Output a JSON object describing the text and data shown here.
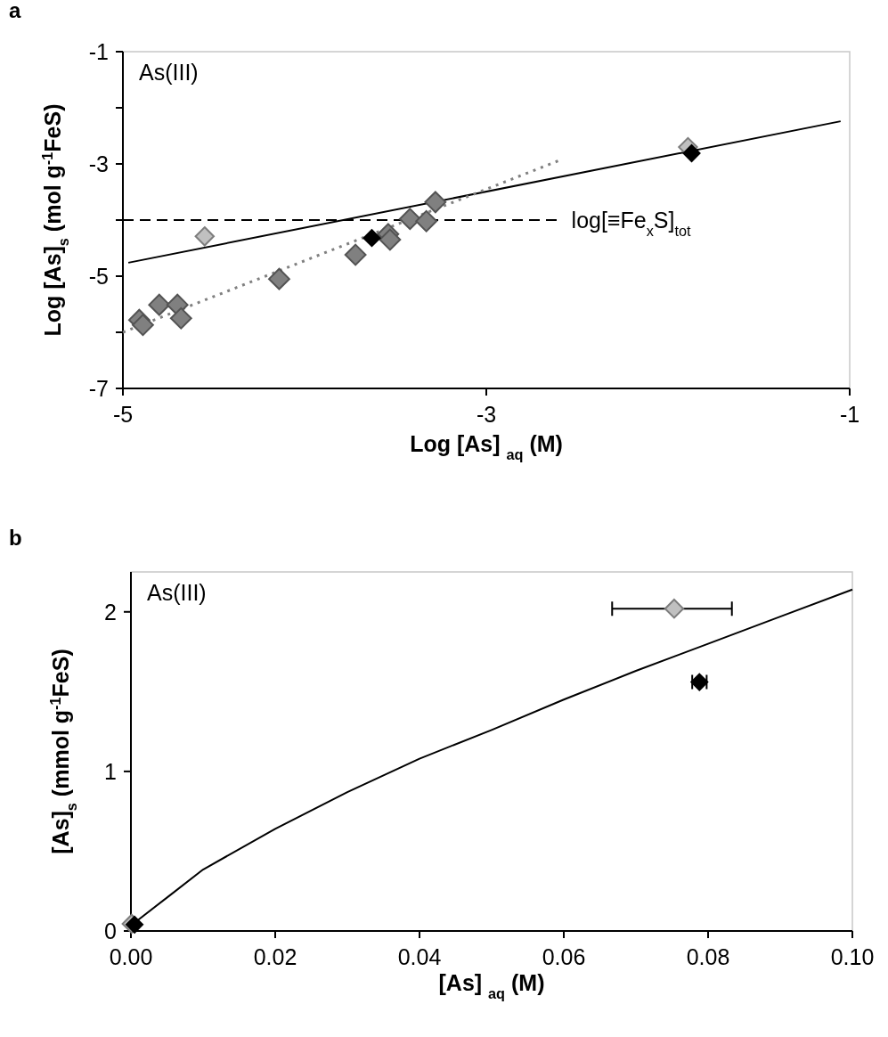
{
  "chart_data": [
    {
      "type": "scatter",
      "title": "a",
      "xlabel": "Log [As] $_{aq}$ (M)",
      "ylabel": "Log [As]$_{s}$ (mol g$^{-1}$FeS)",
      "annotations": [
        "As(III)"
      ],
      "xlim": [
        -5,
        -1
      ],
      "xticks": [
        -5,
        -3,
        -1
      ],
      "ylim": [
        -7,
        -1
      ],
      "yticks": [
        -7,
        {
          "value": -6,
          "label": null
        },
        -5,
        {
          "value": -4,
          "label": null
        },
        -3,
        {
          "value": -2,
          "label": null
        },
        -1
      ],
      "grid": false,
      "series": [
        {
          "type": "line",
          "color": "#000000",
          "line_style": "solid",
          "x": [
            -4.97,
            -1.05
          ],
          "values": [
            -4.76,
            -2.24
          ]
        },
        {
          "type": "line",
          "color": "#808080",
          "line_style": "dotted",
          "x": [
            -5,
            -2.6
          ],
          "values": [
            -6.0,
            -2.94
          ]
        },
        {
          "type": "line",
          "name": "log[≡Fe$_{x}$S]$_{tot}$",
          "color": "#000000",
          "line_style": "dashed",
          "x": [
            -5,
            -2.6
          ],
          "values": [
            -4,
            -4
          ]
        },
        {
          "marker": "diamond",
          "color": "#808080",
          "x": [
            -4.91,
            -4.89,
            -4.8,
            -4.7,
            -4.68,
            -4.14,
            -3.72,
            -3.54,
            -3.53,
            -3.42,
            -3.33,
            -3.28
          ],
          "values": [
            -5.78,
            -5.87,
            -5.51,
            -5.51,
            -5.75,
            -5.05,
            -4.62,
            -4.25,
            -4.35,
            -3.98,
            -4.02,
            -3.68
          ]
        },
        {
          "marker": "diamond",
          "color": "#c0c0c0",
          "x": [
            -4.55,
            -1.89
          ],
          "values": [
            -4.29,
            -2.7
          ]
        },
        {
          "marker": "diamond",
          "color": "#000000",
          "x": [
            -3.63,
            -1.87
          ],
          "values": [
            -4.32,
            -2.81
          ]
        }
      ]
    },
    {
      "type": "scatter",
      "title": "b",
      "xlabel": "[As] $_{aq}$ (M)",
      "ylabel": "[As]$_{s}$ (mmol g$^{-1}$FeS)",
      "annotations": [
        "As(III)"
      ],
      "xlim": [
        0,
        0.1
      ],
      "xticks": [
        {
          "value": 0,
          "label": "0.00"
        },
        {
          "value": 0.02,
          "label": "0.02"
        },
        {
          "value": 0.04,
          "label": "0.04"
        },
        {
          "value": 0.06,
          "label": "0.06"
        },
        {
          "value": 0.08,
          "label": "0.08"
        },
        {
          "value": 0.1,
          "label": "0.10"
        }
      ],
      "ylim": [
        0,
        2.25
      ],
      "yticks": [
        0,
        1,
        2
      ],
      "grid": false,
      "series": [
        {
          "type": "line",
          "color": "#000000",
          "line_style": "solid",
          "x": [
            0.0003,
            0.0053,
            0.01,
            0.02,
            0.03,
            0.04,
            0.05,
            0.06,
            0.07,
            0.08,
            0.09,
            0.1
          ],
          "values": [
            0.045,
            0.22,
            0.385,
            0.64,
            0.87,
            1.08,
            1.26,
            1.45,
            1.63,
            1.8,
            1.97,
            2.14
          ]
        },
        {
          "marker": "diamond",
          "color": "#c0c0c0",
          "x": [
            0.0001,
            0.0753
          ],
          "values": [
            0.045,
            2.02
          ],
          "xerrors": [
            null,
            [
              0.0667,
              0.0833
            ]
          ]
        },
        {
          "marker": "diamond",
          "color": "#000000",
          "x": [
            0.0005,
            0.0788
          ],
          "values": [
            0.04,
            1.56
          ],
          "xerrors": [
            null,
            [
              0.0778,
              0.0798
            ]
          ]
        }
      ]
    }
  ]
}
